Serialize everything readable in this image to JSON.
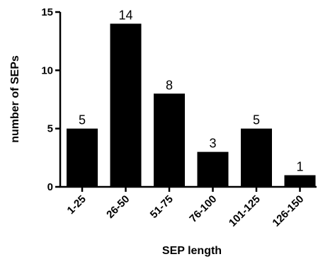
{
  "chart_data": {
    "type": "bar",
    "categories": [
      "1-25",
      "26-50",
      "51-75",
      "76-100",
      "101-125",
      "126-150"
    ],
    "values": [
      5,
      14,
      8,
      3,
      5,
      1
    ],
    "data_labels": [
      "5",
      "14",
      "8",
      "3",
      "5",
      "1"
    ],
    "title": "",
    "xlabel": "SEP length",
    "ylabel": "number of SEPs",
    "ylim": [
      0,
      15
    ],
    "yticks": [
      0,
      5,
      10,
      15
    ],
    "ytick_labels": [
      "0",
      "5",
      "10",
      "15"
    ],
    "grid": false,
    "bar_color": "#000000"
  }
}
